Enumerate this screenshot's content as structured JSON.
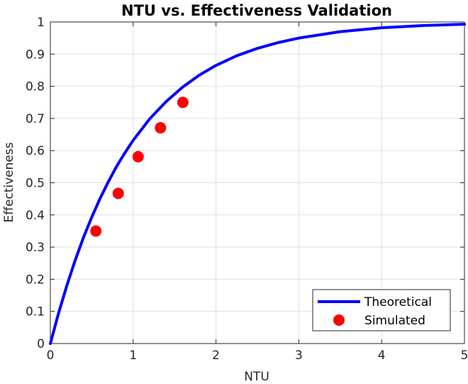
{
  "chart_data": {
    "type": "line",
    "title": "NTU vs. Effectiveness Validation",
    "xlabel": "NTU",
    "ylabel": "Effectiveness",
    "xlim": [
      0,
      5
    ],
    "ylim": [
      0,
      1
    ],
    "x_ticks": [
      0,
      1,
      2,
      3,
      4,
      5
    ],
    "x_tick_labels": [
      "0",
      "1",
      "2",
      "3",
      "4",
      "5"
    ],
    "y_ticks": [
      0,
      0.1,
      0.2,
      0.3,
      0.4,
      0.5,
      0.6,
      0.7,
      0.8,
      0.9,
      1
    ],
    "y_tick_labels": [
      "0",
      "0.1",
      "0.2",
      "0.3",
      "0.4",
      "0.5",
      "0.6",
      "0.7",
      "0.8",
      "0.9",
      "1"
    ],
    "grid": true,
    "legend_position": "bottom-right",
    "series": [
      {
        "name": "Theoretical",
        "kind": "line",
        "color": "#0000ff",
        "x": [
          0,
          0.1,
          0.2,
          0.3,
          0.4,
          0.5,
          0.6,
          0.7,
          0.8,
          0.9,
          1.0,
          1.2,
          1.4,
          1.6,
          1.8,
          2.0,
          2.25,
          2.5,
          2.75,
          3.0,
          3.5,
          4.0,
          4.5,
          5.0
        ],
        "y": [
          0,
          0.095,
          0.181,
          0.259,
          0.33,
          0.393,
          0.451,
          0.503,
          0.551,
          0.593,
          0.632,
          0.699,
          0.753,
          0.798,
          0.835,
          0.865,
          0.895,
          0.918,
          0.936,
          0.95,
          0.97,
          0.982,
          0.989,
          0.993
        ]
      },
      {
        "name": "Simulated",
        "kind": "scatter",
        "color": "#ff0000",
        "x": [
          0.55,
          0.82,
          1.06,
          1.33,
          1.6
        ],
        "y": [
          0.35,
          0.467,
          0.581,
          0.671,
          0.75
        ]
      }
    ]
  }
}
